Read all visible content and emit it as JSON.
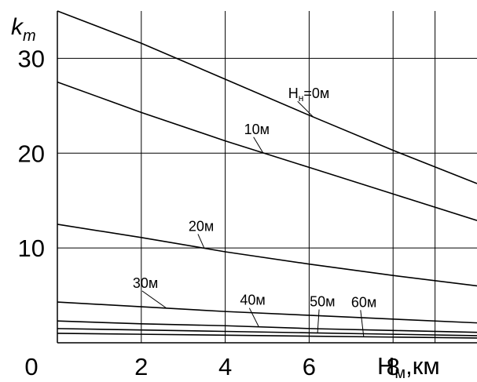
{
  "chart_data": {
    "type": "line",
    "xlabel": {
      "main": "H",
      "sub": "м",
      "unit": ",км"
    },
    "ylabel": {
      "main": "k",
      "sub": "m"
    },
    "xlim": [
      0,
      10
    ],
    "ylim": [
      0,
      35
    ],
    "grid": true,
    "x_ticks": [
      {
        "value": 0,
        "label": "0"
      },
      {
        "value": 2,
        "label": "2"
      },
      {
        "value": 4,
        "label": "4"
      },
      {
        "value": 6,
        "label": "6"
      },
      {
        "value": 8,
        "label": "8"
      }
    ],
    "y_ticks": [
      {
        "value": 10,
        "label": "10"
      },
      {
        "value": 20,
        "label": "20"
      },
      {
        "value": 30,
        "label": "30"
      }
    ],
    "series": [
      {
        "name": "Hн=0м",
        "x": [
          0,
          2,
          4,
          6,
          8,
          10
        ],
        "values": [
          35.0,
          31.6,
          27.8,
          24.0,
          20.3,
          16.8
        ]
      },
      {
        "name": "10м",
        "x": [
          0,
          2,
          4,
          6,
          8,
          10
        ],
        "values": [
          27.5,
          24.3,
          21.3,
          18.5,
          15.7,
          12.9
        ]
      },
      {
        "name": "20м",
        "x": [
          0,
          2,
          4,
          6,
          8,
          10
        ],
        "values": [
          12.5,
          11.1,
          9.6,
          8.3,
          7.1,
          6.0
        ]
      },
      {
        "name": "30м",
        "x": [
          0,
          2,
          4,
          6,
          8,
          10
        ],
        "values": [
          4.3,
          3.8,
          3.3,
          2.9,
          2.5,
          2.1
        ]
      },
      {
        "name": "40м",
        "x": [
          0,
          2,
          4,
          6,
          8,
          10
        ],
        "values": [
          2.3,
          2.0,
          1.8,
          1.5,
          1.3,
          1.1
        ]
      },
      {
        "name": "50м",
        "x": [
          0,
          2,
          4,
          6,
          8,
          10
        ],
        "values": [
          1.5,
          1.35,
          1.2,
          1.05,
          0.9,
          0.75
        ]
      },
      {
        "name": "60м",
        "x": [
          0,
          2,
          4,
          6,
          8,
          10
        ],
        "values": [
          1.0,
          0.9,
          0.8,
          0.7,
          0.6,
          0.5
        ]
      }
    ],
    "annotations": [
      {
        "series": 0,
        "main": "H",
        "sub": "н",
        "rest": "=0м",
        "at_x": 6.1
      },
      {
        "series": 1,
        "main": "10м",
        "at_x": 4.9
      },
      {
        "series": 2,
        "main": "20м",
        "at_x": 3.5
      },
      {
        "series": 3,
        "main": "30м",
        "at_x": 2.6
      },
      {
        "series": 4,
        "main": "40м",
        "at_x": 4.8
      },
      {
        "series": 5,
        "main": "50м",
        "at_x": 6.2
      },
      {
        "series": 6,
        "main": "60м",
        "at_x": 7.3
      }
    ]
  }
}
